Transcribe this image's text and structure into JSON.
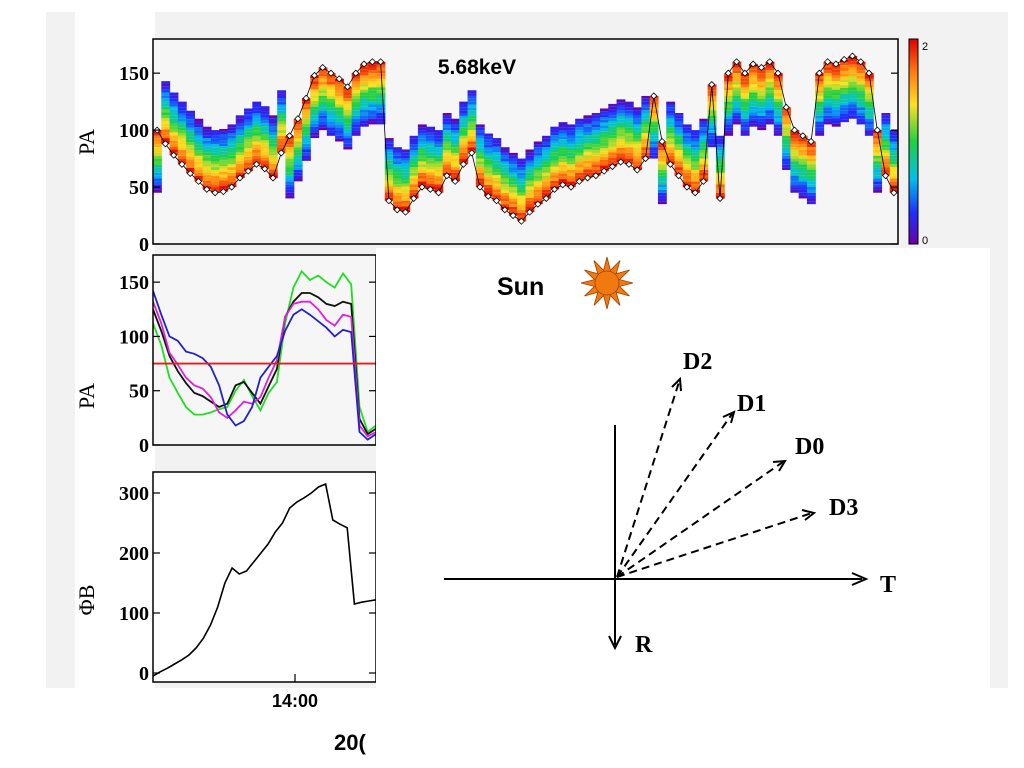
{
  "chart_data": [
    {
      "type": "heatmap",
      "title": "5.68keV",
      "ylabel": "PA",
      "ylim": [
        0,
        180
      ],
      "yticks": [
        0,
        50,
        100,
        150
      ],
      "colorbar": {
        "min": 0,
        "max": 2,
        "tick_labels": [
          "0",
          "2"
        ]
      },
      "ridge_pa": [
        100,
        88,
        78,
        70,
        62,
        55,
        48,
        45,
        46,
        50,
        58,
        64,
        70,
        66,
        58,
        80,
        95,
        110,
        128,
        148,
        155,
        150,
        145,
        138,
        150,
        158,
        160,
        160,
        38,
        30,
        28,
        40,
        50,
        48,
        45,
        60,
        55,
        70,
        80,
        50,
        42,
        38,
        30,
        25,
        20,
        28,
        35,
        40,
        48,
        52,
        50,
        55,
        58,
        60,
        64,
        68,
        72,
        70,
        65,
        75,
        130,
        90,
        70,
        60,
        50,
        45,
        55,
        140,
        40,
        150,
        160,
        150,
        158,
        155,
        160,
        150,
        120,
        100,
        95,
        90,
        150,
        160,
        158,
        162,
        165,
        160,
        150,
        100,
        60,
        45
      ]
    },
    {
      "type": "line",
      "ylabel": "PA",
      "ylim": [
        0,
        175
      ],
      "yticks": [
        0,
        50,
        100,
        150
      ],
      "reference_line": 75,
      "series": [
        {
          "color": "#22dd22",
          "values": [
            112,
            92,
            62,
            48,
            35,
            28,
            28,
            30,
            33,
            35,
            50,
            60,
            45,
            32,
            48,
            58,
            112,
            145,
            160,
            152,
            156,
            150,
            145,
            158,
            148,
            35,
            12,
            18
          ]
        },
        {
          "color": "#111111",
          "values": [
            125,
            105,
            82,
            68,
            57,
            48,
            45,
            40,
            35,
            38,
            55,
            58,
            48,
            38,
            54,
            70,
            118,
            132,
            140,
            140,
            136,
            130,
            128,
            132,
            130,
            24,
            10,
            15
          ]
        },
        {
          "color": "#dd22dd",
          "values": [
            132,
            112,
            85,
            74,
            62,
            55,
            52,
            44,
            30,
            25,
            32,
            40,
            38,
            44,
            62,
            78,
            118,
            130,
            132,
            132,
            125,
            115,
            110,
            120,
            118,
            18,
            8,
            12
          ]
        },
        {
          "color": "#2222cc",
          "values": [
            142,
            120,
            100,
            96,
            86,
            84,
            80,
            72,
            55,
            28,
            18,
            22,
            35,
            62,
            72,
            82,
            105,
            120,
            125,
            120,
            114,
            108,
            100,
            106,
            104,
            12,
            5,
            10
          ]
        }
      ]
    },
    {
      "type": "line",
      "ylabel": "ΦB",
      "ylim": [
        -15,
        335
      ],
      "yticks": [
        0,
        100,
        200,
        300
      ],
      "xticks": [
        "14:00"
      ],
      "xlabel": "20(",
      "series": [
        {
          "color": "#000000",
          "values": [
            -5,
            2,
            8,
            15,
            22,
            30,
            42,
            58,
            80,
            110,
            150,
            175,
            165,
            170,
            185,
            200,
            215,
            235,
            250,
            275,
            285,
            292,
            300,
            310,
            315,
            255,
            248,
            242,
            115,
            118,
            120,
            122
          ]
        }
      ]
    }
  ],
  "diagram": {
    "sun_label": "Sun",
    "directions": [
      "D2",
      "D1",
      "D0",
      "D3"
    ],
    "axis_t": "T",
    "axis_r": "R"
  }
}
